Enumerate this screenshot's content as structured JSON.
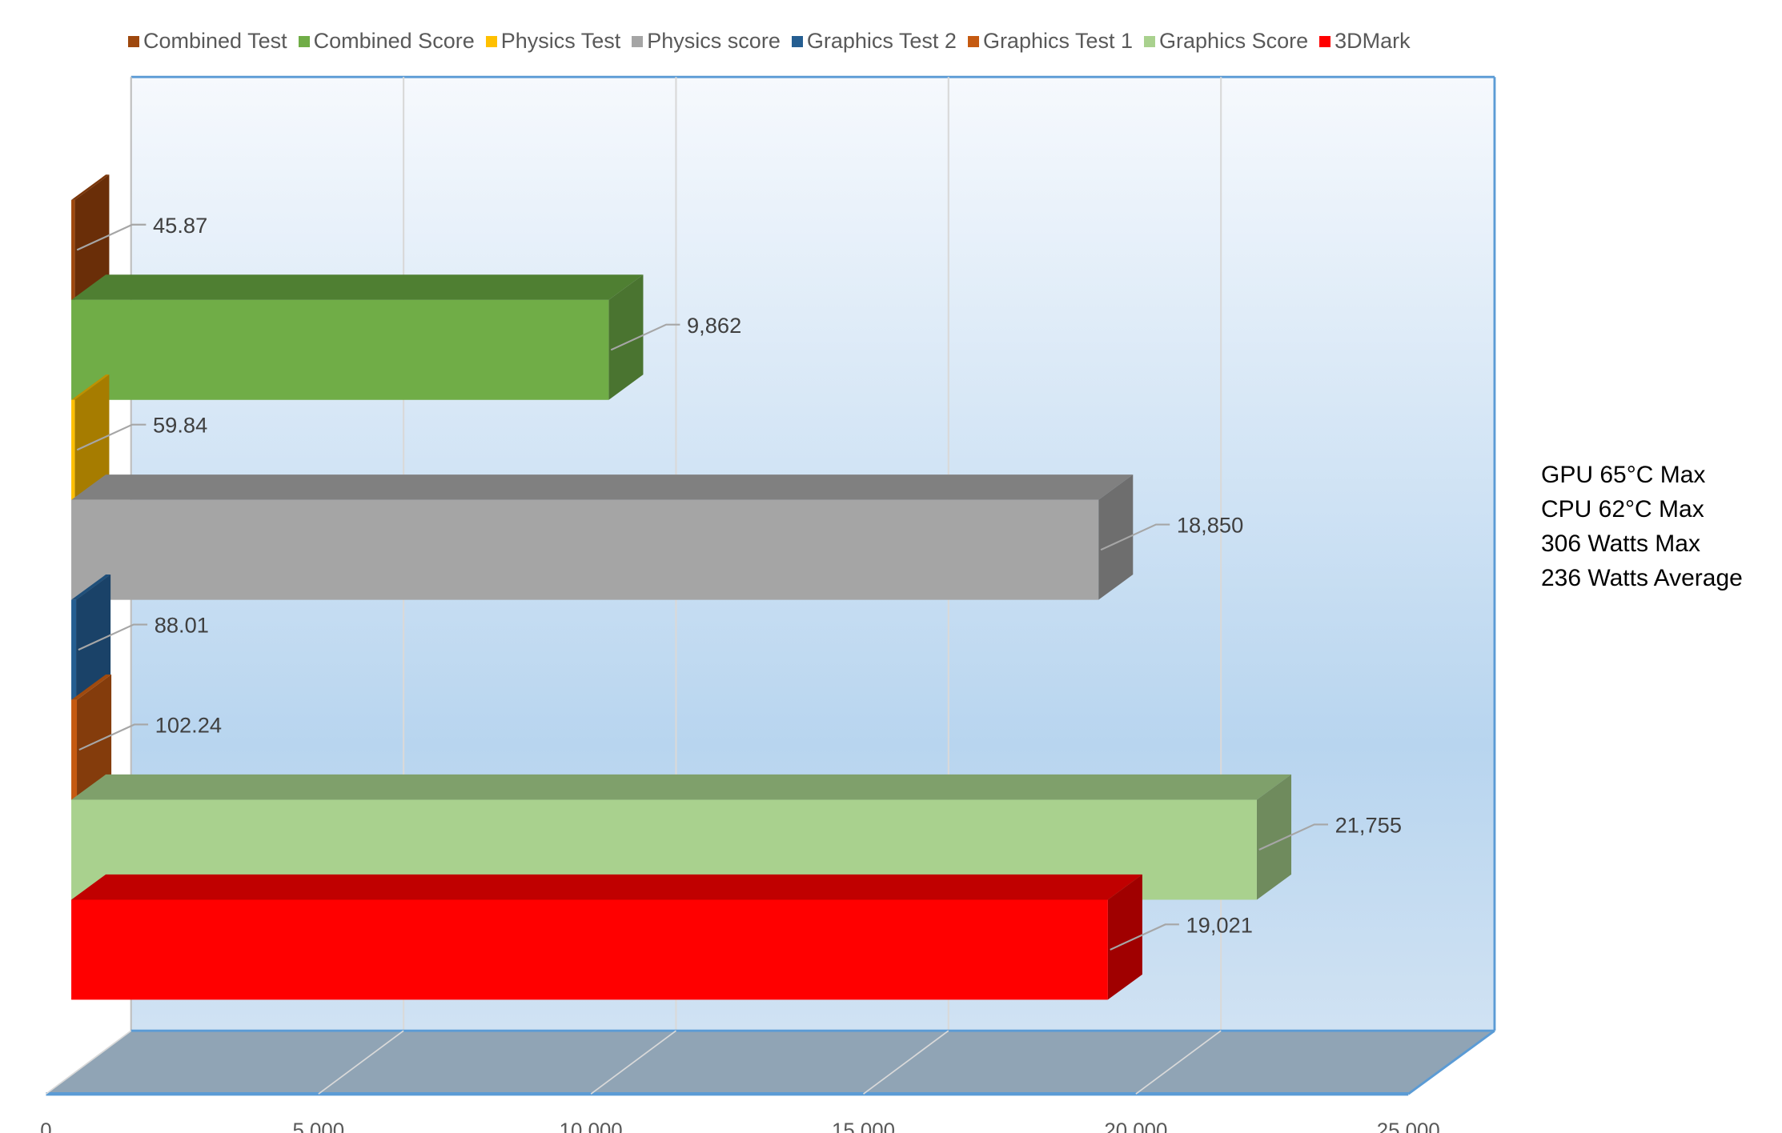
{
  "chart_data": {
    "type": "bar",
    "orientation": "horizontal-3d",
    "title": "",
    "xlabel": "",
    "ylabel": "",
    "xlim": [
      0,
      25000
    ],
    "x_ticks": [
      "0",
      "5,000",
      "10,000",
      "15,000",
      "20,000",
      "25,000"
    ],
    "grid": true,
    "legend_position": "top",
    "series": [
      {
        "name": "3DMark",
        "value": 19021,
        "label": "19,021",
        "color": "#ff0000",
        "side": "#a00000",
        "top": "#c00000"
      },
      {
        "name": "Graphics Score",
        "value": 21755,
        "label": "21,755",
        "color": "#a9d18e",
        "side": "#6f8b5d",
        "top": "#7fa06b"
      },
      {
        "name": "Graphics Test 1",
        "value": 102.24,
        "label": "102.24",
        "color": "#c55a11",
        "side": "#843c0c",
        "top": "#a04a0e"
      },
      {
        "name": "Graphics Test 2",
        "value": 88.01,
        "label": "88.01",
        "color": "#255e91",
        "side": "#1a4268",
        "top": "#1f4f7a"
      },
      {
        "name": "Physics score",
        "value": 18850,
        "label": "18,850",
        "color": "#a5a5a5",
        "side": "#6e6e6e",
        "top": "#808080"
      },
      {
        "name": "Physics Test",
        "value": 59.84,
        "label": "59.84",
        "color": "#ffc000",
        "side": "#a67c00",
        "top": "#bf9000"
      },
      {
        "name": "Combined Score",
        "value": 9862,
        "label": "9,862",
        "color": "#70ad47",
        "side": "#4a7430",
        "top": "#4f7f32"
      },
      {
        "name": "Combined Test",
        "value": 45.87,
        "label": "45.87",
        "color": "#9e480e",
        "side": "#6a2e08",
        "top": "#7a360a"
      }
    ],
    "legend_order": [
      "Combined Test",
      "Combined Score",
      "Physics Test",
      "Physics score",
      "Graphics Test 2",
      "Graphics Test 1",
      "Graphics Score",
      "3DMark"
    ],
    "annotations": [
      "GPU 65°C Max",
      "CPU 62°C Max",
      "306 Watts Max",
      "236 Watts Average"
    ]
  }
}
